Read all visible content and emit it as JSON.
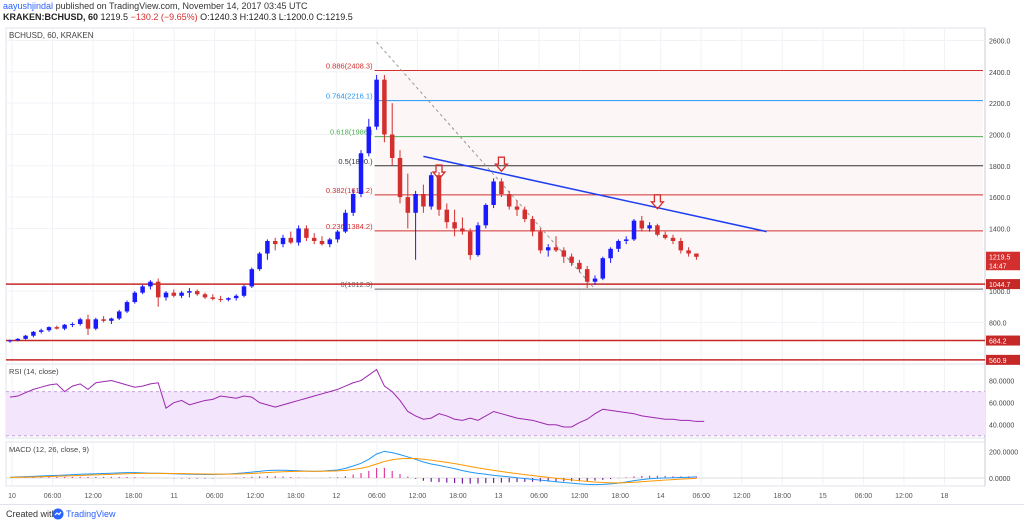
{
  "header": {
    "author": "aayushjindal",
    "published": "published on TradingView.com, November 14, 2017 03:45 UTC",
    "symbol": "KRAKEN:BCHUSD, 60",
    "ohlc_value": "1219.5",
    "ohlc_change": "−130.2 (−9.65%)",
    "ohlc_rest": "O:1240.3 H:1240.3 L:1200.0 C:1219.5"
  },
  "footer": {
    "created_with": "Created with",
    "brand": "TradingView"
  },
  "colors": {
    "up": "#1a1aff",
    "down": "#d32f2f",
    "trend": "#1e3ff0",
    "rsi": "#9c27b0",
    "macd": "#2196f3",
    "signal": "#ff9800"
  },
  "chart_data": [
    {
      "type": "candlestick",
      "title": "BCHUSD, 60, KRAKEN",
      "ylim": [
        560,
        2680
      ],
      "y_ticks": [
        "2600.0",
        "2400.0",
        "2200.0",
        "2000.0",
        "1800.0",
        "1600.0",
        "1400.0",
        "1000.0",
        "800.0"
      ],
      "x_ticks": [
        "10",
        "06:00",
        "12:00",
        "18:00",
        "11",
        "06:00",
        "12:00",
        "18:00",
        "12",
        "06:00",
        "12:00",
        "18:00",
        "13",
        "06:00",
        "12:00",
        "18:00",
        "14",
        "06:00",
        "12:00",
        "18:00",
        "15",
        "06:00",
        "12:00",
        "18"
      ],
      "price_labels": [
        {
          "text": "1219.5",
          "value": 1219.5,
          "color": "#d32f2f"
        },
        {
          "text": "14:47",
          "value": 1165,
          "color": "#d32f2f"
        },
        {
          "text": "1044.7",
          "value": 1044.7,
          "color": "#c62828"
        },
        {
          "text": "684.2",
          "value": 684.2,
          "color": "#c62828"
        },
        {
          "text": "560.9",
          "value": 560.9,
          "color": "#c62828"
        }
      ],
      "horizontal_levels": [
        {
          "value": 1044.7,
          "color": "#c62828"
        },
        {
          "value": 684.2,
          "color": "#c62828"
        },
        {
          "value": 560.9,
          "color": "#c62828"
        }
      ],
      "fibonacci": [
        {
          "label": "0.886(2408.3)",
          "value": 2408.3,
          "color": "#d32f2f"
        },
        {
          "label": "0.764(2216.1)",
          "value": 2216.1,
          "color": "#2196f3"
        },
        {
          "label": "0.618(1986.)",
          "value": 1986,
          "color": "#4caf50"
        },
        {
          "label": "0.5(1800.)",
          "value": 1800,
          "color": "#333333"
        },
        {
          "label": "0.382(1614.2)",
          "value": 1614.2,
          "color": "#d32f2f"
        },
        {
          "label": "0.236(1384.2)",
          "value": 1384.2,
          "color": "#d32f2f"
        },
        {
          "label": "0(1012.3)",
          "value": 1012.3,
          "color": "#666666"
        }
      ],
      "candles": [
        [
          680,
          690,
          670,
          685
        ],
        [
          685,
          700,
          680,
          695
        ],
        [
          695,
          720,
          690,
          715
        ],
        [
          715,
          745,
          705,
          740
        ],
        [
          740,
          760,
          730,
          750
        ],
        [
          750,
          775,
          740,
          770
        ],
        [
          770,
          780,
          755,
          760
        ],
        [
          760,
          790,
          750,
          785
        ],
        [
          785,
          800,
          770,
          790
        ],
        [
          790,
          830,
          780,
          820
        ],
        [
          820,
          850,
          720,
          760
        ],
        [
          760,
          830,
          750,
          820
        ],
        [
          820,
          840,
          800,
          810
        ],
        [
          810,
          830,
          790,
          825
        ],
        [
          825,
          880,
          815,
          870
        ],
        [
          870,
          940,
          860,
          930
        ],
        [
          930,
          1000,
          920,
          990
        ],
        [
          990,
          1040,
          980,
          1030
        ],
        [
          1030,
          1070,
          1010,
          1060
        ],
        [
          1060,
          1080,
          900,
          960
        ],
        [
          960,
          1000,
          940,
          990
        ],
        [
          990,
          1010,
          960,
          970
        ],
        [
          970,
          1000,
          955,
          990
        ],
        [
          990,
          1020,
          960,
          1000
        ],
        [
          1000,
          1010,
          970,
          980
        ],
        [
          980,
          990,
          950,
          960
        ],
        [
          960,
          980,
          940,
          950
        ],
        [
          950,
          970,
          930,
          945
        ],
        [
          945,
          960,
          935,
          955
        ],
        [
          955,
          980,
          940,
          970
        ],
        [
          970,
          1040,
          960,
          1030
        ],
        [
          1030,
          1150,
          1020,
          1140
        ],
        [
          1140,
          1250,
          1130,
          1240
        ],
        [
          1240,
          1330,
          1200,
          1320
        ],
        [
          1320,
          1340,
          1260,
          1300
        ],
        [
          1300,
          1360,
          1280,
          1340
        ],
        [
          1340,
          1380,
          1300,
          1310
        ],
        [
          1310,
          1420,
          1290,
          1400
        ],
        [
          1400,
          1420,
          1320,
          1340
        ],
        [
          1340,
          1370,
          1300,
          1320
        ],
        [
          1320,
          1350,
          1290,
          1300
        ],
        [
          1300,
          1340,
          1280,
          1330
        ],
        [
          1330,
          1390,
          1310,
          1380
        ],
        [
          1380,
          1520,
          1370,
          1500
        ],
        [
          1500,
          1650,
          1480,
          1620
        ],
        [
          1620,
          1900,
          1600,
          1880
        ],
        [
          1880,
          2100,
          1860,
          2050
        ],
        [
          2050,
          2380,
          2030,
          2350
        ],
        [
          2350,
          2380,
          1950,
          2000
        ],
        [
          2000,
          2200,
          1800,
          1850
        ],
        [
          1850,
          1900,
          1560,
          1600
        ],
        [
          1600,
          1750,
          1400,
          1500
        ],
        [
          1500,
          1640,
          1200,
          1620
        ],
        [
          1620,
          1680,
          1500,
          1540
        ],
        [
          1540,
          1760,
          1520,
          1740
        ],
        [
          1740,
          1760,
          1480,
          1520
        ],
        [
          1520,
          1560,
          1400,
          1440
        ],
        [
          1440,
          1520,
          1350,
          1400
        ],
        [
          1400,
          1470,
          1360,
          1380
        ],
        [
          1380,
          1400,
          1200,
          1230
        ],
        [
          1230,
          1440,
          1220,
          1420
        ],
        [
          1420,
          1560,
          1400,
          1550
        ],
        [
          1550,
          1720,
          1530,
          1700
        ],
        [
          1700,
          1720,
          1600,
          1620
        ],
        [
          1620,
          1640,
          1520,
          1540
        ],
        [
          1540,
          1580,
          1480,
          1520
        ],
        [
          1520,
          1540,
          1440,
          1460
        ],
        [
          1460,
          1480,
          1350,
          1380
        ],
        [
          1380,
          1400,
          1240,
          1260
        ],
        [
          1260,
          1300,
          1220,
          1280
        ],
        [
          1280,
          1350,
          1250,
          1260
        ],
        [
          1260,
          1280,
          1180,
          1220
        ],
        [
          1220,
          1240,
          1160,
          1180
        ],
        [
          1180,
          1200,
          1120,
          1140
        ],
        [
          1140,
          1160,
          1020,
          1060
        ],
        [
          1060,
          1100,
          1040,
          1080
        ],
        [
          1080,
          1220,
          1070,
          1210
        ],
        [
          1210,
          1280,
          1180,
          1270
        ],
        [
          1270,
          1330,
          1250,
          1320
        ],
        [
          1320,
          1350,
          1300,
          1330
        ],
        [
          1330,
          1460,
          1320,
          1450
        ],
        [
          1450,
          1480,
          1380,
          1400
        ],
        [
          1400,
          1440,
          1380,
          1420
        ],
        [
          1420,
          1430,
          1350,
          1360
        ],
        [
          1360,
          1380,
          1330,
          1340
        ],
        [
          1340,
          1360,
          1300,
          1320
        ],
        [
          1320,
          1340,
          1240,
          1260
        ],
        [
          1260,
          1280,
          1220,
          1240
        ],
        [
          1240,
          1240,
          1200,
          1219
        ]
      ],
      "trendline": [
        [
          1800,
          1860
        ],
        [
          2720,
          1380
        ]
      ],
      "fib_diagonal": [
        [
          2600,
          2590
        ],
        [
          3100,
          1012.3
        ]
      ],
      "arrows": [
        1690,
        1740,
        1500
      ]
    },
    {
      "type": "line",
      "title": "RSI (14, close)",
      "ylim": [
        28,
        95
      ],
      "y_ticks": [
        "80.0000",
        "60.0000",
        "40.0000"
      ],
      "band": [
        30,
        70
      ],
      "values": [
        65,
        66,
        69,
        72,
        74,
        76,
        77,
        70,
        75,
        77,
        72,
        78,
        79,
        80,
        78,
        76,
        74,
        75,
        77,
        78,
        55,
        60,
        62,
        58,
        60,
        62,
        63,
        66,
        65,
        64,
        66,
        65,
        60,
        58,
        56,
        58,
        60,
        62,
        64,
        66,
        68,
        70,
        72,
        75,
        78,
        80,
        85,
        90,
        75,
        70,
        62,
        52,
        48,
        45,
        46,
        50,
        48,
        45,
        44,
        46,
        44,
        48,
        52,
        50,
        48,
        46,
        45,
        44,
        42,
        40,
        40,
        38,
        38,
        42,
        45,
        50,
        54,
        53,
        52,
        51,
        50,
        48,
        47,
        46,
        45,
        45,
        44,
        44,
        43,
        43
      ]
    },
    {
      "type": "line",
      "title": "MACD (12, 26, close, 9)",
      "ylim": [
        -60,
        270
      ],
      "y_ticks": [
        "200.0000",
        "0.0000"
      ],
      "macd": [
        5,
        8,
        10,
        12,
        15,
        18,
        20,
        22,
        25,
        28,
        30,
        32,
        34,
        36,
        38,
        40,
        40,
        38,
        36,
        36,
        34,
        32,
        30,
        28,
        27,
        26,
        26,
        28,
        30,
        34,
        38,
        44,
        50,
        56,
        58,
        58,
        56,
        54,
        52,
        50,
        52,
        56,
        60,
        72,
        90,
        110,
        140,
        180,
        200,
        190,
        175,
        158,
        140,
        120,
        105,
        95,
        82,
        70,
        55,
        44,
        35,
        28,
        20,
        14,
        8,
        2,
        -4,
        -10,
        -16,
        -22,
        -28,
        -34,
        -38,
        -44,
        -48,
        -50,
        -48,
        -44,
        -38,
        -30,
        -20,
        -12,
        -6,
        -2,
        0,
        2,
        4,
        6,
        8
      ]
    }
  ]
}
